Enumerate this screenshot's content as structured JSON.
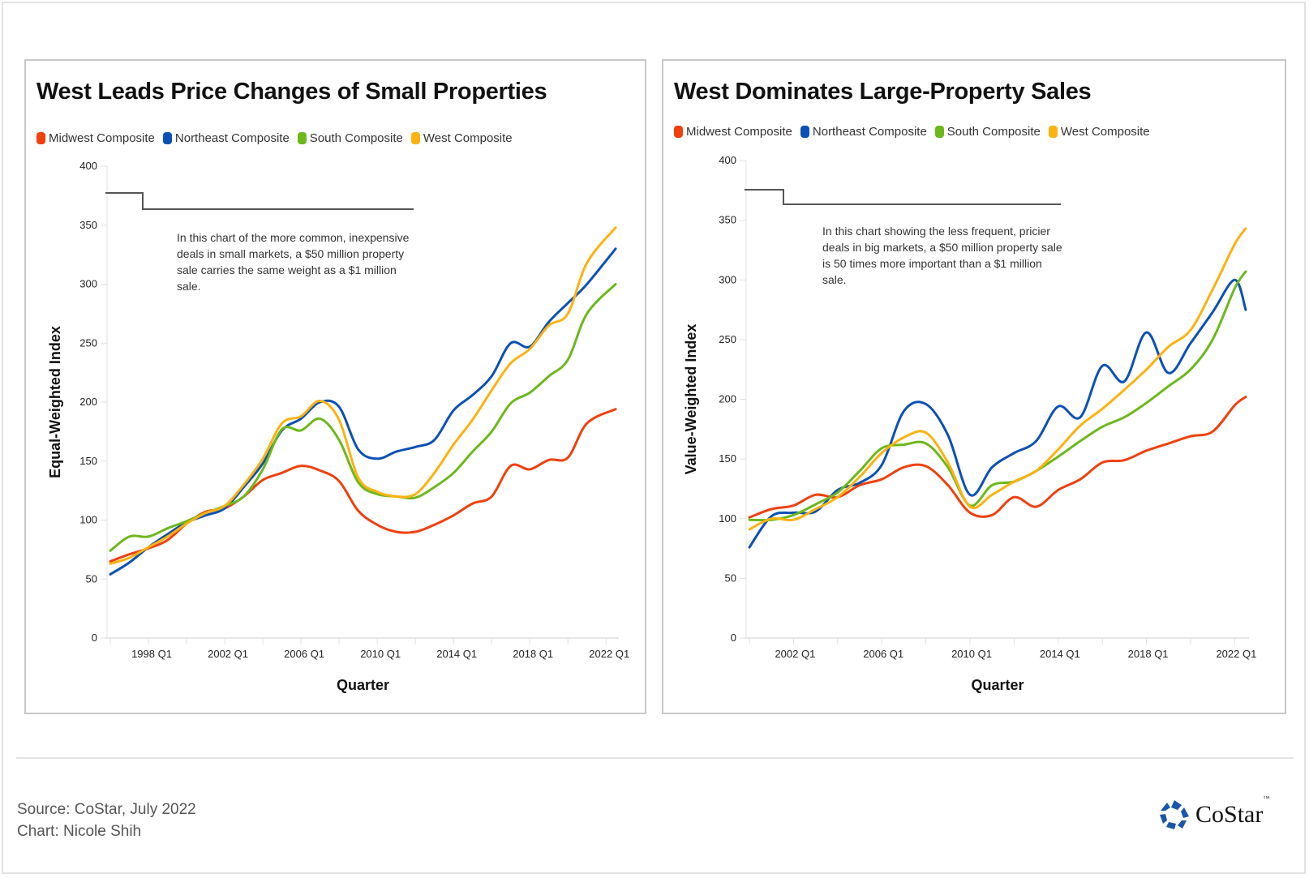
{
  "footer": {
    "source": "Source: CoStar, July 2022",
    "credit": "Chart: Nicole Shih",
    "logo_text": "CoStar",
    "logo_tm": "™",
    "logo_icon": "costar-star-icon"
  },
  "colors": {
    "midwest": "#f0400e",
    "northeast": "#0b50b5",
    "south": "#6cb81a",
    "west": "#fcb20f",
    "annotation_line": "#555555"
  },
  "chart_data": [
    {
      "type": "line",
      "title": "West Leads Price Changes of Small Properties",
      "xlabel": "Quarter",
      "ylabel": "Equal-Weighted Index",
      "ylim": [
        0,
        400
      ],
      "yticks": [
        0,
        50,
        100,
        150,
        200,
        250,
        300,
        350,
        400
      ],
      "xlim": [
        1996.0,
        2022.5
      ],
      "xticks": [
        1998,
        2002,
        2006,
        2010,
        2014,
        2018,
        2022
      ],
      "xtick_labels": [
        "1998 Q1",
        "2002 Q1",
        "2006 Q1",
        "2010 Q1",
        "2014 Q1",
        "2018 Q1",
        "2022 Q1"
      ],
      "grid": false,
      "legend": "top-left",
      "annotation": "In this chart of the more common, inexpensive deals in small markets, a $50 million property sale carries the same weight as a $1 million sale.",
      "x": [
        1996,
        1997,
        1998,
        1999,
        2000,
        2001,
        2002,
        2003,
        2004,
        2005,
        2006,
        2007,
        2008,
        2009,
        2010,
        2011,
        2012,
        2013,
        2014,
        2015,
        2016,
        2017,
        2018,
        2019,
        2020,
        2021,
        2022.5
      ],
      "series": [
        {
          "name": "Midwest Composite",
          "key": "midwest",
          "values": [
            65,
            71,
            76,
            83,
            97,
            107,
            110,
            120,
            134,
            140,
            146,
            142,
            133,
            108,
            96,
            90,
            90,
            96,
            104,
            114,
            120,
            146,
            143,
            151,
            153,
            182,
            194
          ]
        },
        {
          "name": "Northeast Composite",
          "key": "northeast",
          "values": [
            54,
            64,
            77,
            88,
            98,
            104,
            110,
            128,
            148,
            176,
            186,
            200,
            196,
            160,
            152,
            158,
            162,
            168,
            193,
            206,
            222,
            250,
            247,
            268,
            284,
            300,
            330
          ]
        },
        {
          "name": "South Composite",
          "key": "south",
          "values": [
            74,
            86,
            86,
            93,
            99,
            106,
            112,
            120,
            143,
            177,
            176,
            186,
            168,
            132,
            122,
            120,
            119,
            128,
            140,
            158,
            175,
            199,
            208,
            222,
            236,
            275,
            300
          ]
        },
        {
          "name": "West Composite",
          "key": "west",
          "values": [
            63,
            68,
            77,
            86,
            97,
            106,
            112,
            130,
            152,
            182,
            188,
            201,
            185,
            136,
            124,
            120,
            122,
            140,
            164,
            185,
            210,
            233,
            245,
            265,
            275,
            318,
            348
          ]
        }
      ]
    },
    {
      "type": "line",
      "title": "West Dominates Large-Property Sales",
      "xlabel": "Quarter",
      "ylabel": "Value-Weighted Index",
      "ylim": [
        0,
        400
      ],
      "yticks": [
        0,
        50,
        100,
        150,
        200,
        250,
        300,
        350,
        400
      ],
      "xlim": [
        2000.0,
        2022.5
      ],
      "xticks": [
        2002,
        2006,
        2010,
        2014,
        2018,
        2022
      ],
      "xtick_labels": [
        "2002 Q1",
        "2006 Q1",
        "2010 Q1",
        "2014 Q1",
        "2018 Q1",
        "2022 Q1"
      ],
      "grid": false,
      "legend": "top-left",
      "annotation": "In this chart showing the less frequent, pricier deals in big markets, a $50 million property sale is 50 times more important than a $1 million sale.",
      "x": [
        2000,
        2001,
        2002,
        2003,
        2004,
        2005,
        2006,
        2007,
        2008,
        2009,
        2010,
        2011,
        2012,
        2013,
        2014,
        2015,
        2016,
        2017,
        2018,
        2019,
        2020,
        2021,
        2022,
        2022.5
      ],
      "series": [
        {
          "name": "Midwest Composite",
          "key": "midwest",
          "values": [
            101,
            108,
            111,
            120,
            118,
            128,
            133,
            143,
            144,
            128,
            105,
            103,
            118,
            110,
            124,
            133,
            147,
            149,
            157,
            163,
            169,
            173,
            195,
            202
          ]
        },
        {
          "name": "Northeast Composite",
          "key": "northeast",
          "values": [
            76,
            102,
            105,
            106,
            124,
            130,
            145,
            190,
            196,
            170,
            120,
            143,
            155,
            165,
            194,
            185,
            228,
            215,
            256,
            222,
            247,
            273,
            300,
            275
          ]
        },
        {
          "name": "South Composite",
          "key": "south",
          "values": [
            99,
            99,
            103,
            112,
            122,
            140,
            159,
            162,
            163,
            143,
            111,
            128,
            131,
            140,
            152,
            165,
            177,
            185,
            197,
            211,
            225,
            250,
            293,
            307
          ]
        },
        {
          "name": "West Composite",
          "key": "west",
          "values": [
            91,
            100,
            99,
            108,
            118,
            135,
            155,
            168,
            172,
            147,
            110,
            120,
            131,
            140,
            158,
            178,
            192,
            208,
            225,
            244,
            258,
            292,
            330,
            343
          ]
        }
      ]
    }
  ]
}
